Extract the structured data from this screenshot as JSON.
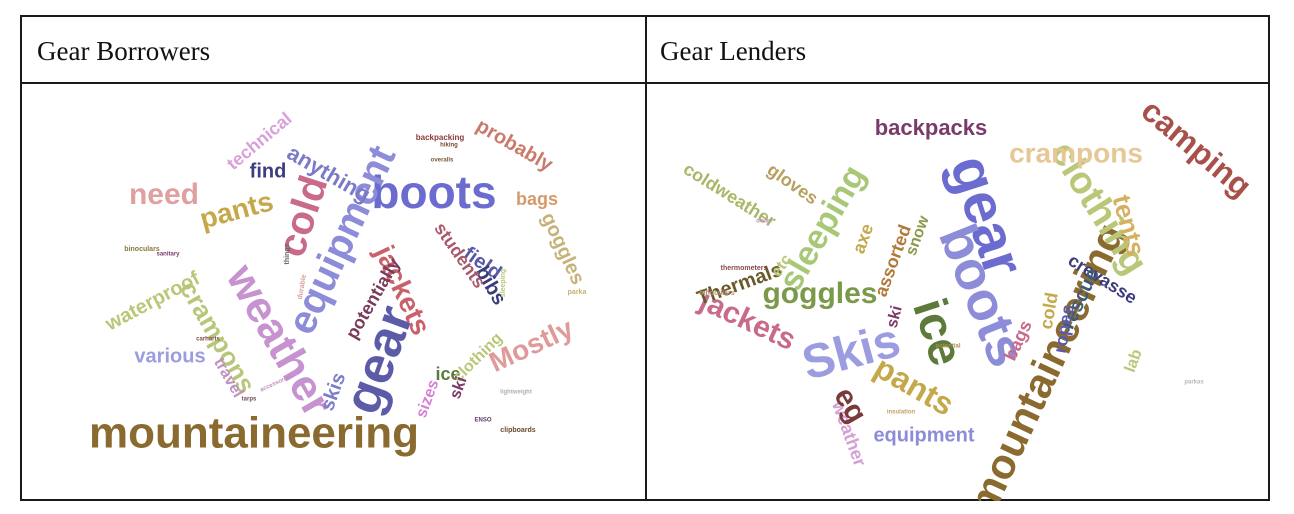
{
  "table": {
    "columns": [
      {
        "header": "Gear Borrowers"
      },
      {
        "header": "Gear Lenders"
      }
    ]
  },
  "clouds": {
    "borrowers": {
      "words": [
        {
          "t": "mountaineering",
          "c": "#8a6a2e"
        },
        {
          "t": "gear",
          "c": "#5b5ba8"
        },
        {
          "t": "boots",
          "c": "#6b6bd0"
        },
        {
          "t": "weather",
          "c": "#c792d0"
        },
        {
          "t": "equipment",
          "c": "#8c8cd8"
        },
        {
          "t": "cold",
          "c": "#c96a8a"
        },
        {
          "t": "need",
          "c": "#e0a0a0"
        },
        {
          "t": "pants",
          "c": "#c4a84a"
        },
        {
          "t": "jackets",
          "c": "#c9606a"
        },
        {
          "t": "Mostly",
          "c": "#e09a9a"
        },
        {
          "t": "crampons",
          "c": "#b7c77a"
        },
        {
          "t": "waterproof",
          "c": "#b8c877"
        },
        {
          "t": "various",
          "c": "#9c9ce0"
        },
        {
          "t": "skis",
          "c": "#7d7dc9"
        },
        {
          "t": "ice",
          "c": "#5d7a3a"
        },
        {
          "t": "field",
          "c": "#5858a8"
        },
        {
          "t": "bibs",
          "c": "#3c3c7c"
        },
        {
          "t": "find",
          "c": "#3d3d80"
        },
        {
          "t": "anything",
          "c": "#7a7ac8"
        },
        {
          "t": "technical",
          "c": "#d9a0d9"
        },
        {
          "t": "probably",
          "c": "#c97a6a"
        },
        {
          "t": "bags",
          "c": "#d69a6a"
        },
        {
          "t": "goggles",
          "c": "#c7b27a"
        },
        {
          "t": "students",
          "c": "#a85a6a"
        },
        {
          "t": "potentially",
          "c": "#7a3a5a"
        },
        {
          "t": "clothing",
          "c": "#b8c878"
        },
        {
          "t": "travel",
          "c": "#c090c0"
        },
        {
          "t": "sizes",
          "c": "#d680d6"
        },
        {
          "t": "ski",
          "c": "#7a3a6a"
        },
        {
          "t": "backpacking",
          "c": "#8a3a3a"
        },
        {
          "t": "binoculars",
          "c": "#8a7a3a"
        },
        {
          "t": "sleeping",
          "c": "#b8c878"
        },
        {
          "t": "parka",
          "c": "#c4b070"
        },
        {
          "t": "durable",
          "c": "#d4a0a0"
        },
        {
          "t": "clipboards",
          "c": "#6a4a2a"
        },
        {
          "t": "overalls",
          "c": "#7a5a3a"
        },
        {
          "t": "hiking",
          "c": "#7a4a2a"
        },
        {
          "t": "things",
          "c": "#6a6a6a"
        },
        {
          "t": "sanitary",
          "c": "#7a3a6a"
        },
        {
          "t": "ENSO",
          "c": "#5a3a6a"
        },
        {
          "t": "carharts",
          "c": "#7a4a3a"
        },
        {
          "t": "tarps",
          "c": "#6a4a5a"
        },
        {
          "t": "accessories",
          "c": "#c090c0"
        },
        {
          "t": "lightweight",
          "c": "#b0b0b0"
        }
      ]
    },
    "lenders": {
      "words": [
        {
          "t": "mountaineering",
          "c": "#8a6a2e"
        },
        {
          "t": "gear",
          "c": "#6b6bd0"
        },
        {
          "t": "boots",
          "c": "#8c8cd8"
        },
        {
          "t": "ice",
          "c": "#5d7a3a"
        },
        {
          "t": "Skis",
          "c": "#9c9ce0"
        },
        {
          "t": "camping",
          "c": "#a8504a"
        },
        {
          "t": "clothing",
          "c": "#b8c878"
        },
        {
          "t": "crampons",
          "c": "#e6c896"
        },
        {
          "t": "sleeping",
          "c": "#a8c878"
        },
        {
          "t": "goggles",
          "c": "#7a9a4a"
        },
        {
          "t": "pants",
          "c": "#c4a84a"
        },
        {
          "t": "jackets",
          "c": "#c96a8a"
        },
        {
          "t": "tents",
          "c": "#d6b060"
        },
        {
          "t": "backpacks",
          "c": "#7a3a6a"
        },
        {
          "t": "coldweather",
          "c": "#a8b868"
        },
        {
          "t": "gloves",
          "c": "#b8a060"
        },
        {
          "t": "crevasse",
          "c": "#3c3c7c"
        },
        {
          "t": "rescue",
          "c": "#3c5a7a"
        },
        {
          "t": "ropes",
          "c": "#5a5aa8"
        },
        {
          "t": "cold",
          "c": "#c4a84a"
        },
        {
          "t": "bags",
          "c": "#c96a8a"
        },
        {
          "t": "equipment",
          "c": "#8c8cd8"
        },
        {
          "t": "weather",
          "c": "#d4a0d4"
        },
        {
          "t": "Thermals",
          "c": "#6a5a2a"
        },
        {
          "t": "assorted",
          "c": "#b07a3a"
        },
        {
          "t": "axe",
          "c": "#c4a84a"
        },
        {
          "t": "snow",
          "c": "#8a9a4a"
        },
        {
          "t": "etc",
          "c": "#b8c878"
        },
        {
          "t": "ski",
          "c": "#7a3a6a"
        },
        {
          "t": "eg",
          "c": "#7a3a3a"
        },
        {
          "t": "lab",
          "c": "#b8c878"
        },
        {
          "t": "thermometers",
          "c": "#8a4a4a"
        },
        {
          "t": "binoculars",
          "c": "#b09070"
        },
        {
          "t": "down",
          "c": "#c090c0"
        },
        {
          "t": "parkas",
          "c": "#b8b8b8"
        },
        {
          "t": "potential",
          "c": "#a88a4a"
        },
        {
          "t": "insulation",
          "c": "#c4a060"
        }
      ]
    }
  }
}
